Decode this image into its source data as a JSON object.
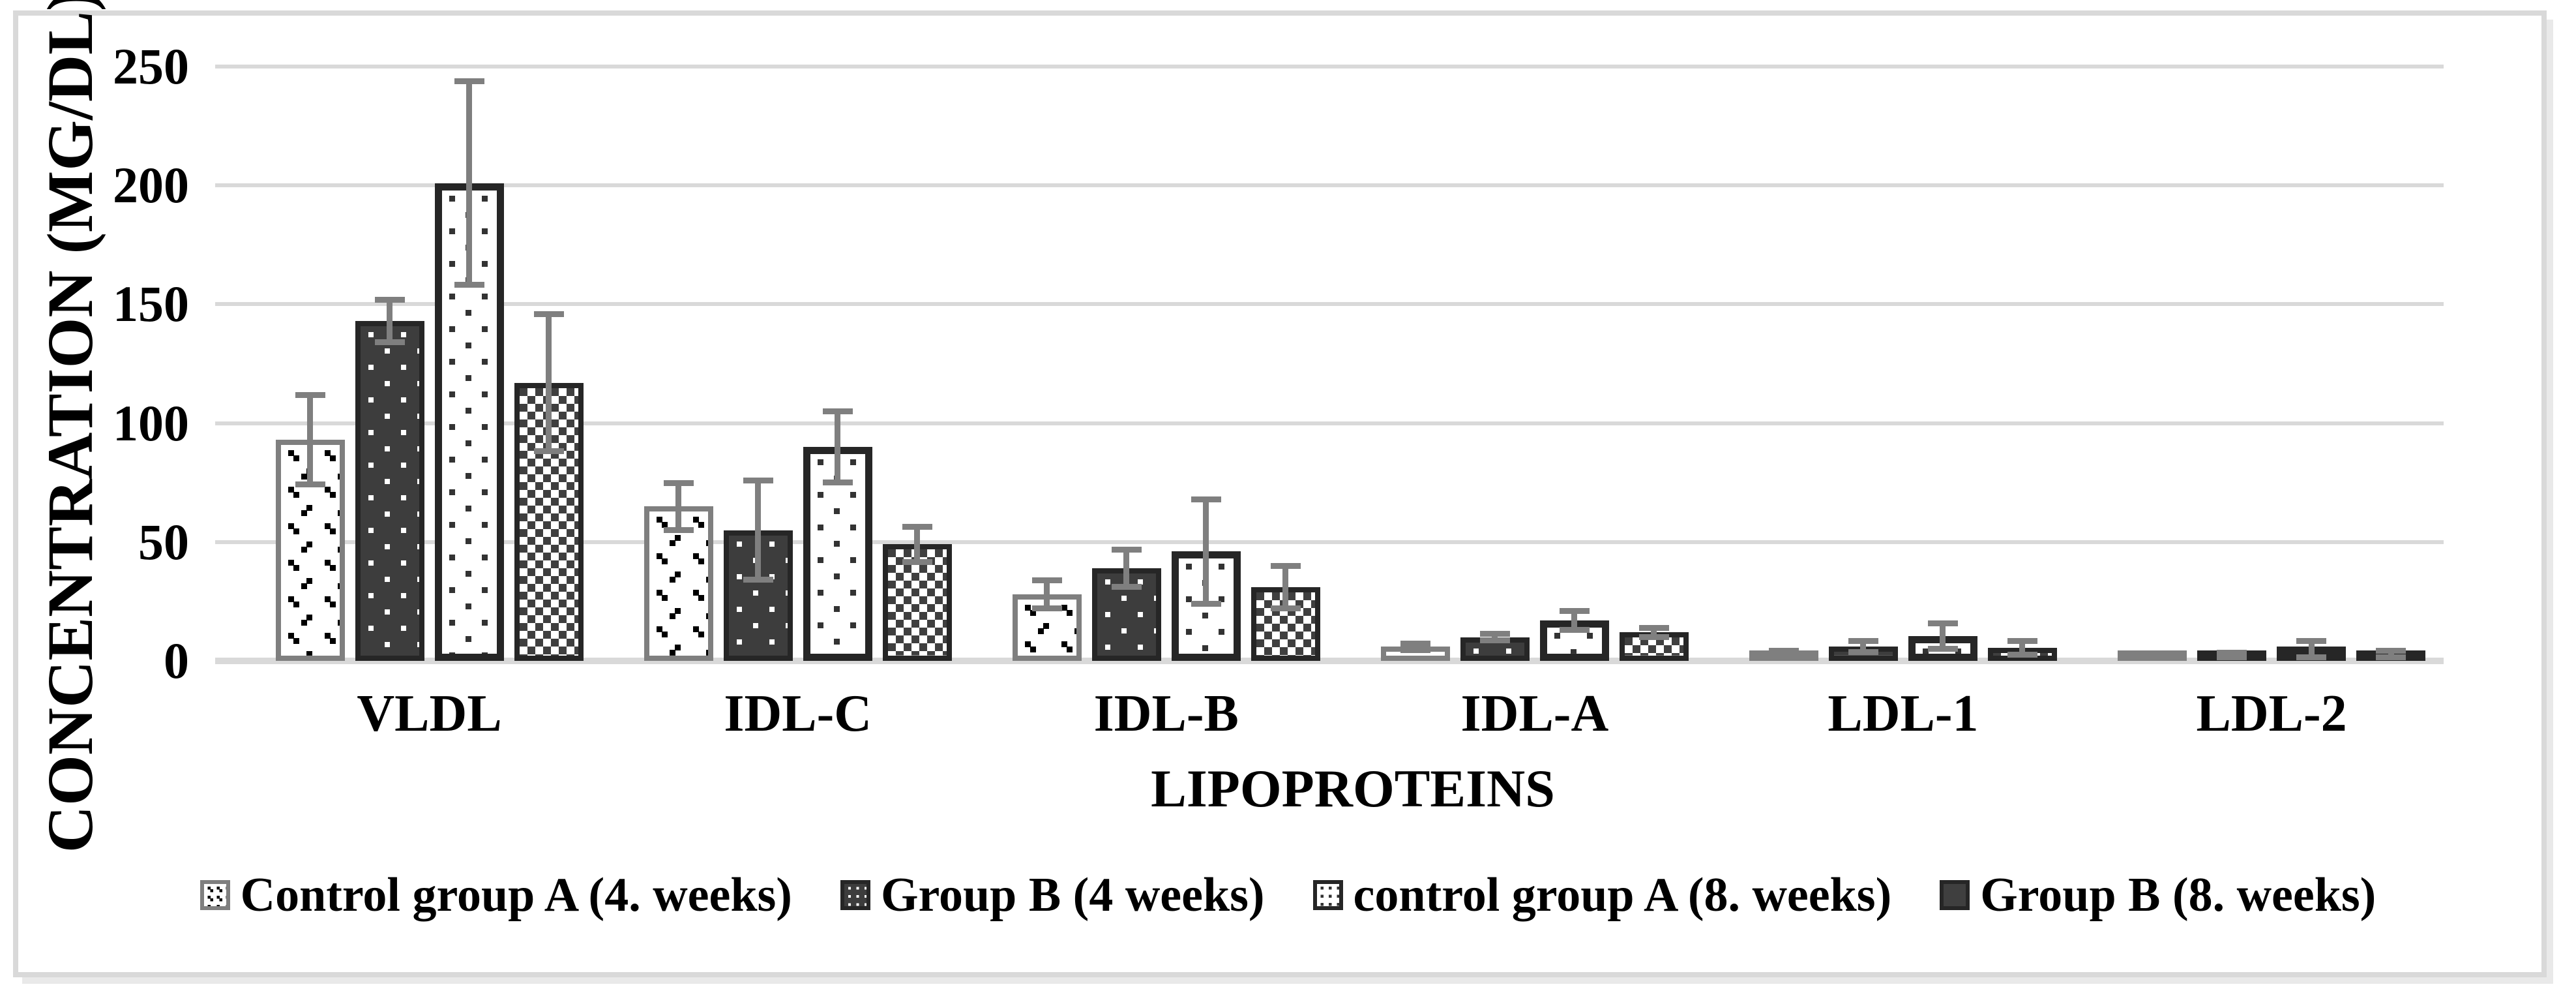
{
  "chart_data": {
    "type": "bar",
    "title": "",
    "xlabel": "LIPOPROTEINS",
    "ylabel": "CONCENTRATION (MG/DL)",
    "ylim": [
      0,
      250
    ],
    "yticks": [
      0,
      50,
      100,
      150,
      200,
      250
    ],
    "ytick_labels": [
      "0",
      "50",
      "100",
      "150",
      "200",
      "250"
    ],
    "grid": true,
    "legend_position": "bottom",
    "error_bars": true,
    "categories": [
      "VLDL",
      "IDL-C",
      "IDL-B",
      "IDL-A",
      "LDL-1",
      "LDL-2"
    ],
    "series": [
      {
        "name": "Control group A (4. weeks)",
        "pattern": "sparse-black-dot-pairs-on-white",
        "values": [
          93,
          65,
          28,
          6,
          3.5,
          1.5
        ],
        "errors": [
          19,
          10,
          6,
          1.5,
          1,
          0.5
        ]
      },
      {
        "name": "Group B (4 weeks)",
        "pattern": "white-dots-on-dark",
        "values": [
          143,
          55,
          39,
          10,
          6,
          2.5
        ],
        "errors": [
          9,
          21,
          8,
          1.5,
          2.5,
          1
        ]
      },
      {
        "name": "control group A (8. weeks)",
        "pattern": "dark-dots-on-white",
        "values": [
          201,
          90,
          46,
          17,
          10.5,
          5
        ],
        "errors": [
          43,
          15,
          22,
          4,
          5.5,
          3.5
        ]
      },
      {
        "name": "Group B (8. weeks)",
        "pattern": "checkerboard",
        "values": [
          117,
          49,
          31,
          12,
          5.5,
          3
        ],
        "errors": [
          29,
          7.5,
          9,
          2,
          3,
          1.5
        ]
      }
    ]
  },
  "colors": {
    "gridline": "#d9d9d9",
    "frame_border": "#d9d9d9",
    "error_bar": "#7f7f7f",
    "bar_dark_fill": "#3d3d3d",
    "bar_border_dark": "#262626",
    "bar_border_gray": "#7f7f7f",
    "text": "#000000"
  }
}
